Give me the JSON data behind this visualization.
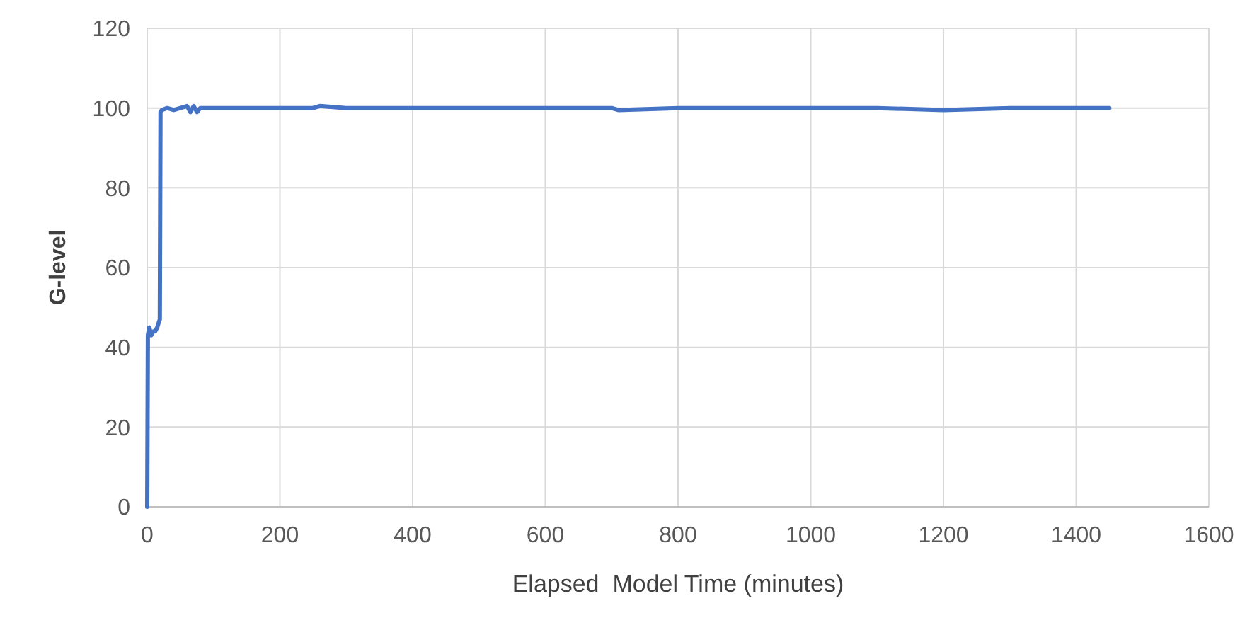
{
  "chart_data": {
    "type": "line",
    "xlabel": "Elapsed  Model Time (minutes)",
    "ylabel": "G-level",
    "xlim": [
      0,
      1600
    ],
    "xticks": [
      0,
      200,
      400,
      600,
      800,
      1000,
      1200,
      1400,
      1600
    ],
    "ylim": [
      0,
      120
    ],
    "yticks": [
      0,
      20,
      40,
      60,
      80,
      100,
      120
    ],
    "grid": true,
    "marker": "none",
    "line_style": "solid",
    "series": [
      {
        "color": "#4472c4",
        "x": [
          0,
          1,
          3,
          6,
          9,
          12,
          15,
          17,
          19,
          20,
          22,
          30,
          40,
          50,
          60,
          65,
          70,
          75,
          80,
          100,
          150,
          200,
          250,
          260,
          300,
          400,
          500,
          600,
          700,
          710,
          800,
          900,
          1000,
          1100,
          1200,
          1300,
          1400,
          1450
        ],
        "values": [
          0,
          43,
          45,
          43,
          44,
          44,
          45,
          46,
          47,
          99,
          99.5,
          100,
          99.5,
          100,
          100.5,
          99,
          100.5,
          99,
          100,
          100,
          100,
          100,
          100,
          100.5,
          100,
          100,
          100,
          100,
          100,
          99.5,
          100,
          100,
          100,
          100,
          99.5,
          100,
          100,
          100
        ]
      }
    ]
  }
}
